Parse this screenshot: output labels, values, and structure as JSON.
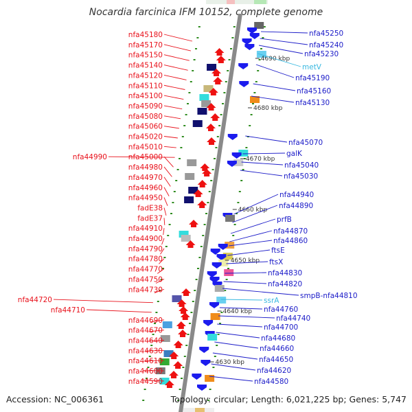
{
  "title": "Nocardia farcinica IFM 10152, complete genome",
  "accession": "Accession: NC_006361",
  "summary": "Topology: circular; Length: 6,021,225 bp; Genes: 5,747",
  "colors": {
    "left_label": "#e8101a",
    "right_label": "#1a1ac8",
    "rna_label": "#38b8e0",
    "backbone": "#8a8a8a",
    "tick": "#2e8b1e",
    "fwd_gene": "#ee1111",
    "rev_gene": "#1c1cee",
    "dark_block": "#10106e",
    "cyan_block": "#33dddd",
    "gray_block": "#999999"
  },
  "left_labels": [
    "nfa45180",
    "nfa45170",
    "nfa45150",
    "nfa45140",
    "nfa45120",
    "nfa45110",
    "nfa45100",
    "nfa45090",
    "nfa45080",
    "nfa45060",
    "nfa45020",
    "nfa45010",
    "nfa44990",
    "nfa45000",
    "nfa44980",
    "nfa44970",
    "nfa44960",
    "nfa44950",
    "fadE38",
    "fadE37",
    "nfa44910",
    "nfa44900",
    "nfa44790",
    "nfa44780",
    "nfa44770",
    "nfa44750",
    "nfa44730",
    "nfa44720",
    "nfa44710",
    "nfa44690",
    "nfa44670",
    "nfa44640",
    "nfa44630",
    "nfa44610",
    "nfa44600",
    "nfa44590"
  ],
  "right_labels": [
    {
      "text": "nfa45250",
      "type": "gene"
    },
    {
      "text": "nfa45240",
      "type": "gene"
    },
    {
      "text": "nfa45230",
      "type": "gene"
    },
    {
      "text": "metV",
      "type": "rna"
    },
    {
      "text": "nfa45190",
      "type": "gene"
    },
    {
      "text": "nfa45160",
      "type": "gene"
    },
    {
      "text": "nfa45130",
      "type": "gene"
    },
    {
      "text": "nfa45070",
      "type": "gene"
    },
    {
      "text": "galK",
      "type": "gene"
    },
    {
      "text": "nfa45040",
      "type": "gene"
    },
    {
      "text": "nfa45030",
      "type": "gene"
    },
    {
      "text": "nfa44940",
      "type": "gene"
    },
    {
      "text": "nfa44890",
      "type": "gene"
    },
    {
      "text": "prfB",
      "type": "gene"
    },
    {
      "text": "nfa44870",
      "type": "gene"
    },
    {
      "text": "nfa44860",
      "type": "gene"
    },
    {
      "text": "ftsE",
      "type": "gene"
    },
    {
      "text": "ftsX",
      "type": "gene"
    },
    {
      "text": "nfa44830",
      "type": "gene"
    },
    {
      "text": "nfa44820",
      "type": "gene"
    },
    {
      "text": "smpB-nfa44810",
      "type": "gene"
    },
    {
      "text": "ssrA",
      "type": "rna"
    },
    {
      "text": "nfa44760",
      "type": "gene"
    },
    {
      "text": "nfa44740",
      "type": "gene"
    },
    {
      "text": "nfa44700",
      "type": "gene"
    },
    {
      "text": "nfa44680",
      "type": "gene"
    },
    {
      "text": "nfa44660",
      "type": "gene"
    },
    {
      "text": "nfa44650",
      "type": "gene"
    },
    {
      "text": "nfa44620",
      "type": "gene"
    },
    {
      "text": "nfa44580",
      "type": "gene"
    }
  ],
  "scale_labels": [
    "4690 kbp",
    "4680 kbp",
    "4670 kbp",
    "4660 kbp",
    "4650 kbp",
    "4640 kbp",
    "4630 kbp"
  ]
}
